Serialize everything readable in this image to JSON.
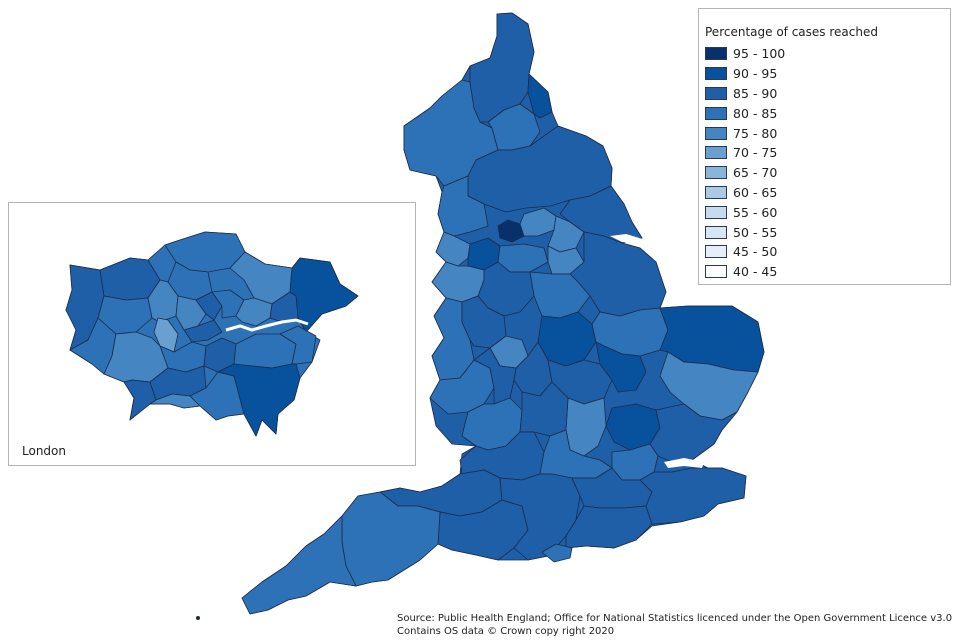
{
  "legend": {
    "title": "Percentage of cases reached",
    "bins": [
      {
        "label": "95 - 100",
        "color": "#08306b"
      },
      {
        "label": "90 - 95",
        "color": "#08519c"
      },
      {
        "label": "85 - 90",
        "color": "#1f5fa8"
      },
      {
        "label": "80 - 85",
        "color": "#2d72b6"
      },
      {
        "label": "75 - 80",
        "color": "#4485c2"
      },
      {
        "label": "70 - 75",
        "color": "#6aa0d0"
      },
      {
        "label": "65 - 70",
        "color": "#8ab5da"
      },
      {
        "label": "60 - 65",
        "color": "#a9c9e4"
      },
      {
        "label": "55 - 60",
        "color": "#c6dbef"
      },
      {
        "label": "50 - 55",
        "color": "#d6e6f4"
      },
      {
        "label": "45 - 50",
        "color": "#e6eff8"
      },
      {
        "label": "40 - 45",
        "color": "#ffffff"
      }
    ]
  },
  "inset": {
    "label": "London"
  },
  "source": {
    "line1": "Source: Public Health England; Office for National Statistics licenced under the Open Government Licence v3.0",
    "line2": "Contains OS data © Crown copy right 2020"
  }
}
